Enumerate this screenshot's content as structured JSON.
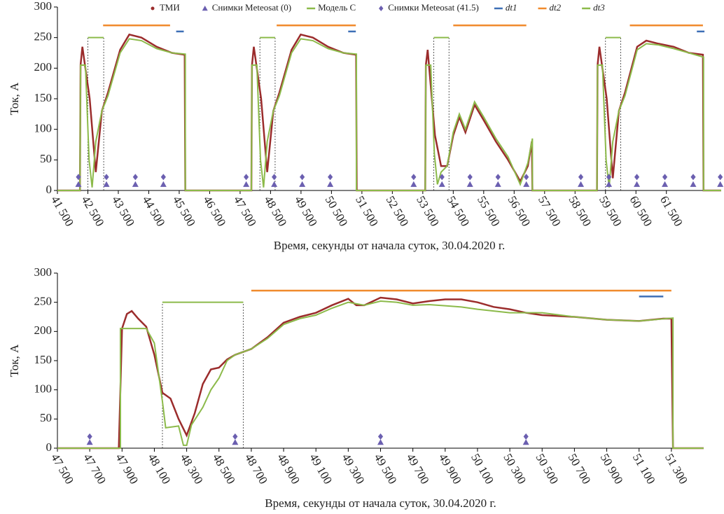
{
  "chart_data": [
    {
      "type": "line",
      "xlabel": "Время, секунды от начала суток, 30.04.2020 г.",
      "ylabel": "Ток, А",
      "xlim": [
        41500,
        63300
      ],
      "ylim": [
        0,
        300
      ],
      "yticks": [
        0,
        50,
        100,
        150,
        200,
        250,
        300
      ],
      "xticks": [
        {
          "value": 41500,
          "label": "41 500"
        },
        {
          "value": 42500,
          "label": "42 500"
        },
        {
          "value": 43500,
          "label": "43 500"
        },
        {
          "value": 44500,
          "label": "44 500"
        },
        {
          "value": 45500,
          "label": "45 500"
        },
        {
          "value": 46500,
          "label": "46 500"
        },
        {
          "value": 47500,
          "label": "47 500"
        },
        {
          "value": 48500,
          "label": "48 500"
        },
        {
          "value": 49500,
          "label": "49 500"
        },
        {
          "value": 50500,
          "label": "50 500"
        },
        {
          "value": 51500,
          "label": "51 500"
        },
        {
          "value": 52500,
          "label": "52 500"
        },
        {
          "value": 53500,
          "label": "53 500"
        },
        {
          "value": 54500,
          "label": "54 500"
        },
        {
          "value": 55500,
          "label": "55 500"
        },
        {
          "value": 56500,
          "label": "56 500"
        },
        {
          "value": 57500,
          "label": "57 500"
        },
        {
          "value": 58500,
          "label": "58 500"
        },
        {
          "value": 59500,
          "label": "59 500"
        },
        {
          "value": 60500,
          "label": "60 500"
        },
        {
          "value": 61500,
          "label": "61 500"
        }
      ],
      "legend": "top-right",
      "series": [
        {
          "name": "ТМИ",
          "color": "#9b2c2c",
          "style": "line",
          "x": [
            41500,
            42240,
            42260,
            42320,
            42560,
            42760,
            42960,
            43160,
            43560,
            43860,
            44260,
            44760,
            45260,
            45680,
            45700,
            47870,
            47890,
            47950,
            48190,
            48390,
            48590,
            48790,
            49190,
            49490,
            49890,
            50390,
            50890,
            51310,
            51330,
            53580,
            53600,
            53660,
            53900,
            54100,
            54300,
            54500,
            54700,
            54900,
            55200,
            55500,
            55900,
            56300,
            56700,
            56950,
            57080,
            57100,
            59220,
            59240,
            59300,
            59540,
            59740,
            59940,
            60140,
            60540,
            60840,
            61240,
            61740,
            62240,
            62700,
            62720,
            63300
          ],
          "values": [
            0,
            0,
            205,
            235,
            150,
            30,
            130,
            160,
            230,
            255,
            250,
            235,
            225,
            222,
            0,
            0,
            205,
            235,
            150,
            30,
            130,
            160,
            230,
            255,
            250,
            235,
            225,
            222,
            0,
            0,
            205,
            230,
            90,
            40,
            40,
            90,
            120,
            95,
            140,
            115,
            80,
            50,
            15,
            40,
            80,
            0,
            0,
            205,
            235,
            150,
            20,
            130,
            160,
            235,
            245,
            240,
            235,
            225,
            222,
            0,
            0
          ]
        },
        {
          "name": "Снимки Meteosat (0)",
          "color": "#6b5fb0",
          "style": "markers",
          "marker": "triangle",
          "x": [
            42190,
            43110,
            44060,
            44980,
            47700,
            48620,
            49540,
            50460,
            53200,
            54130,
            55050,
            55970,
            56900,
            58690,
            59610,
            60530,
            61450,
            62380,
            63270
          ],
          "values": [
            10,
            10,
            10,
            10,
            10,
            10,
            10,
            10,
            10,
            10,
            10,
            10,
            10,
            10,
            10,
            10,
            10,
            10,
            10
          ]
        },
        {
          "name": "Модель C",
          "color": "#8cba4a",
          "style": "line",
          "x": [
            41500,
            42240,
            42260,
            42420,
            42540,
            42640,
            42760,
            42960,
            43160,
            43560,
            43860,
            44260,
            44760,
            45260,
            45700,
            45700,
            47870,
            47890,
            48050,
            48170,
            48270,
            48390,
            48590,
            48790,
            49190,
            49490,
            49890,
            50390,
            50890,
            51320,
            51320,
            53580,
            53600,
            53760,
            53880,
            53980,
            54100,
            54300,
            54500,
            54700,
            54900,
            55200,
            55500,
            55900,
            56300,
            56700,
            56950,
            57100,
            57100,
            59220,
            59240,
            59400,
            59520,
            59620,
            59740,
            59940,
            60140,
            60540,
            60840,
            61240,
            61740,
            62240,
            62720,
            62720,
            63300
          ],
          "values": [
            0,
            0,
            205,
            205,
            50,
            5,
            80,
            130,
            155,
            225,
            248,
            245,
            232,
            225,
            223,
            0,
            0,
            205,
            205,
            50,
            5,
            80,
            130,
            155,
            225,
            248,
            245,
            232,
            225,
            223,
            0,
            0,
            205,
            205,
            60,
            10,
            30,
            40,
            95,
            125,
            100,
            145,
            120,
            85,
            55,
            10,
            45,
            85,
            0,
            0,
            205,
            205,
            50,
            5,
            80,
            130,
            155,
            230,
            240,
            238,
            232,
            225,
            218,
            0,
            0
          ]
        },
        {
          "name": "Снимки Meteosat (41.5)",
          "color": "#6b5fb0",
          "style": "markers",
          "marker": "diamond",
          "x": [
            42190,
            43110,
            44060,
            44980,
            47700,
            48620,
            49540,
            50460,
            53200,
            54130,
            55050,
            55970,
            56900,
            58690,
            59610,
            60530,
            61450,
            62380,
            63270
          ],
          "values": [
            22,
            22,
            22,
            22,
            22,
            22,
            22,
            22,
            22,
            22,
            22,
            22,
            22,
            22,
            22,
            22,
            22,
            22,
            22
          ]
        },
        {
          "name": "dt1",
          "color": "#3d6fb6",
          "style": "segments",
          "x": [
            45400,
            45650,
            null,
            51050,
            51300,
            null,
            62500,
            62750
          ],
          "values": [
            260,
            260,
            null,
            260,
            260,
            null,
            260,
            260
          ]
        },
        {
          "name": "dt2",
          "color": "#f08a2c",
          "style": "segments",
          "x": [
            43000,
            45200,
            null,
            48700,
            51300,
            null,
            54500,
            56900,
            null,
            60300,
            62700
          ],
          "values": [
            270,
            270,
            null,
            270,
            270,
            null,
            270,
            270,
            null,
            270,
            270
          ]
        },
        {
          "name": "dt3",
          "color": "#8cba4a",
          "style": "box",
          "x": [
            42500,
            43020,
            null,
            48150,
            48650,
            null,
            53860,
            54360,
            null,
            59500,
            60000
          ],
          "values": [
            250,
            250,
            null,
            250,
            250,
            null,
            250,
            250,
            null,
            250,
            250
          ]
        }
      ]
    },
    {
      "type": "line",
      "xlabel": "Время, секунды от начала суток, 30.04.2020 г.",
      "ylabel": "Ток, А",
      "xlim": [
        47500,
        51500
      ],
      "ylim": [
        0,
        300
      ],
      "yticks": [
        0,
        50,
        100,
        150,
        200,
        250,
        300
      ],
      "xticks": [
        {
          "value": 47500,
          "label": "47 500"
        },
        {
          "value": 47700,
          "label": "47 700"
        },
        {
          "value": 47900,
          "label": "47 900"
        },
        {
          "value": 48100,
          "label": "48 100"
        },
        {
          "value": 48300,
          "label": "48 300"
        },
        {
          "value": 48500,
          "label": "48 500"
        },
        {
          "value": 48700,
          "label": "48 700"
        },
        {
          "value": 48900,
          "label": "48 900"
        },
        {
          "value": 49100,
          "label": "49 100"
        },
        {
          "value": 49300,
          "label": "49 300"
        },
        {
          "value": 49500,
          "label": "49 500"
        },
        {
          "value": 49700,
          "label": "49 700"
        },
        {
          "value": 49900,
          "label": "49 900"
        },
        {
          "value": 50100,
          "label": "50 100"
        },
        {
          "value": 50300,
          "label": "50 300"
        },
        {
          "value": 50500,
          "label": "50 500"
        },
        {
          "value": 50700,
          "label": "50 700"
        },
        {
          "value": 50900,
          "label": "50 900"
        },
        {
          "value": 51100,
          "label": "51 100"
        },
        {
          "value": 51300,
          "label": "51 300"
        }
      ],
      "series": [
        {
          "color": "#9b2c2c",
          "style": "line",
          "x": [
            47500,
            47880,
            47900,
            47930,
            47960,
            48000,
            48050,
            48100,
            48150,
            48200,
            48250,
            48300,
            48350,
            48400,
            48450,
            48500,
            48550,
            48600,
            48700,
            48800,
            48900,
            49000,
            49100,
            49200,
            49300,
            49350,
            49400,
            49500,
            49600,
            49700,
            49800,
            49900,
            50000,
            50100,
            50200,
            50300,
            50400,
            50500,
            50700,
            50900,
            51100,
            51250,
            51300,
            51310,
            51500
          ],
          "values": [
            0,
            0,
            205,
            230,
            235,
            222,
            208,
            160,
            95,
            85,
            50,
            22,
            60,
            110,
            135,
            138,
            152,
            160,
            170,
            190,
            215,
            225,
            232,
            245,
            256,
            245,
            245,
            258,
            255,
            248,
            252,
            255,
            255,
            250,
            242,
            238,
            232,
            228,
            225,
            220,
            218,
            222,
            222,
            0,
            0
          ]
        },
        {
          "color": "#6b5fb0",
          "style": "markers",
          "marker": "triangle",
          "x": [
            47700,
            48600,
            49500,
            50400
          ],
          "values": [
            10,
            10,
            10,
            10
          ]
        },
        {
          "color": "#8cba4a",
          "style": "line",
          "x": [
            47500,
            47890,
            47890,
            48050,
            48100,
            48150,
            48170,
            48250,
            48280,
            48300,
            48330,
            48400,
            48450,
            48500,
            48550,
            48600,
            48700,
            48800,
            48900,
            49000,
            49100,
            49200,
            49300,
            49400,
            49500,
            49600,
            49700,
            49800,
            49900,
            50000,
            50100,
            50300,
            50500,
            50700,
            50900,
            51100,
            51310,
            51310,
            51500
          ],
          "values": [
            0,
            0,
            205,
            205,
            180,
            80,
            35,
            38,
            5,
            5,
            40,
            70,
            100,
            120,
            150,
            160,
            170,
            188,
            212,
            222,
            228,
            240,
            250,
            245,
            252,
            250,
            245,
            246,
            244,
            242,
            238,
            232,
            232,
            225,
            220,
            218,
            223,
            0,
            0
          ]
        },
        {
          "color": "#6b5fb0",
          "style": "markers",
          "marker": "diamond",
          "x": [
            47700,
            48600,
            49500,
            50400
          ],
          "values": [
            20,
            20,
            20,
            20
          ]
        },
        {
          "color": "#3d6fb6",
          "style": "segments",
          "x": [
            51100,
            51250
          ],
          "values": [
            260,
            260
          ]
        },
        {
          "color": "#f08a2c",
          "style": "segments",
          "x": [
            48700,
            51300
          ],
          "values": [
            270,
            270
          ]
        },
        {
          "color": "#8cba4a",
          "style": "box",
          "x": [
            48150,
            48650
          ],
          "values": [
            250,
            250
          ]
        }
      ]
    }
  ]
}
